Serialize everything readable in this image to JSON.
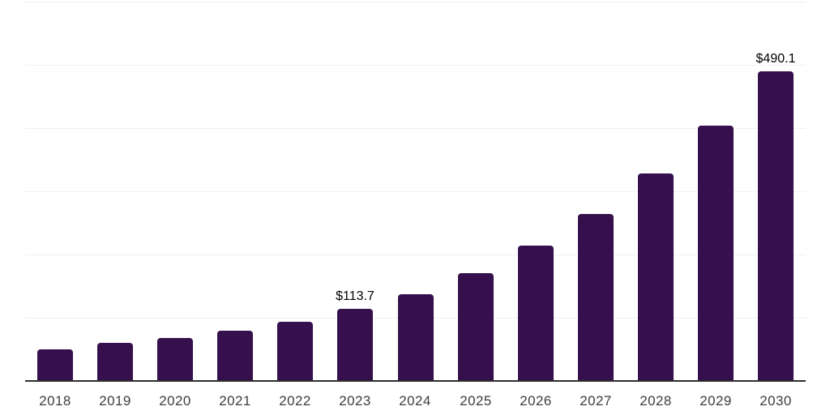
{
  "chart_data": {
    "type": "bar",
    "title": "",
    "categories": [
      "2018",
      "2019",
      "2020",
      "2021",
      "2022",
      "2023",
      "2024",
      "2025",
      "2026",
      "2027",
      "2028",
      "2029",
      "2030"
    ],
    "values": [
      50.0,
      59.9,
      68.3,
      79.9,
      94.0,
      113.7,
      137.6,
      170.9,
      213.7,
      264.1,
      328.2,
      404.2,
      490.1
    ],
    "data_labels": [
      {
        "category": "2023",
        "text": "$113.7"
      },
      {
        "category": "2030",
        "text": "$490.1"
      }
    ],
    "xlabel": "",
    "ylabel": "",
    "ylim": [
      0,
      600
    ],
    "gridline_interval": 100,
    "grid": "horizontal",
    "legend_position": "none",
    "colors": {
      "bar": "#36104D",
      "gridline": "#F0F0F0",
      "axis": "#2E2E2E",
      "tick_label": "#3D3D3D",
      "data_label": "#000000",
      "background": "#FFFFFF"
    }
  }
}
